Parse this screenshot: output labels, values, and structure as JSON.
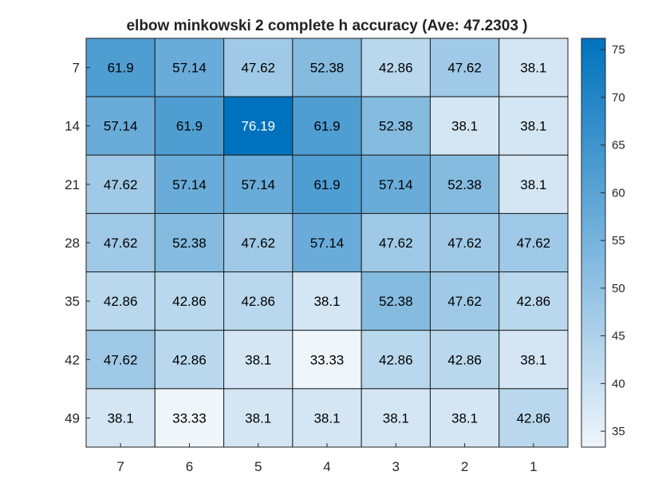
{
  "chart_data": {
    "type": "heatmap",
    "title": "elbow minkowski 2 complete h accuracy (Ave:  47.2303 )",
    "x_categories": [
      "7",
      "6",
      "5",
      "4",
      "3",
      "2",
      "1"
    ],
    "y_categories": [
      "7",
      "14",
      "21",
      "28",
      "35",
      "42",
      "49"
    ],
    "values": [
      [
        "61.9",
        "57.14",
        "47.62",
        "52.38",
        "42.86",
        "47.62",
        "38.1"
      ],
      [
        "57.14",
        "61.9",
        "76.19",
        "61.9",
        "52.38",
        "38.1",
        "38.1"
      ],
      [
        "47.62",
        "57.14",
        "57.14",
        "61.9",
        "57.14",
        "52.38",
        "38.1"
      ],
      [
        "47.62",
        "52.38",
        "47.62",
        "57.14",
        "47.62",
        "47.62",
        "47.62"
      ],
      [
        "42.86",
        "42.86",
        "42.86",
        "38.1",
        "52.38",
        "47.62",
        "42.86"
      ],
      [
        "47.62",
        "42.86",
        "38.1",
        "33.33",
        "42.86",
        "42.86",
        "38.1"
      ],
      [
        "38.1",
        "33.33",
        "38.1",
        "38.1",
        "38.1",
        "38.1",
        "42.86"
      ]
    ],
    "colorbar": {
      "range": [
        33.33,
        76.19
      ],
      "ticks": [
        "35",
        "40",
        "45",
        "50",
        "55",
        "60",
        "65",
        "70",
        "75"
      ],
      "colormap": [
        "#eef5fb",
        "#0072bd"
      ]
    },
    "grid": true
  }
}
